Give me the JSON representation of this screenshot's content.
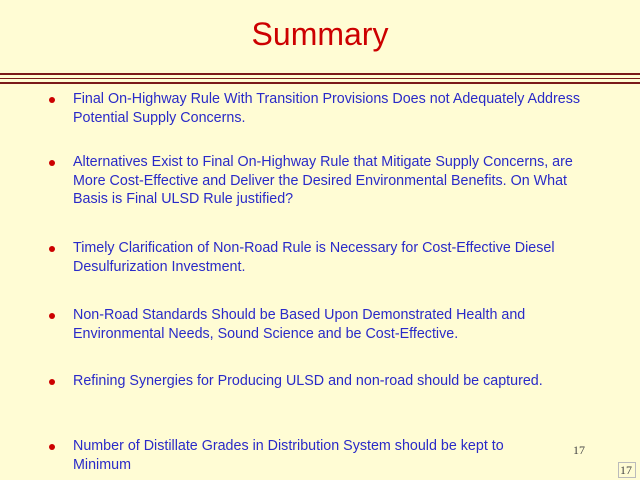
{
  "slide": {
    "title": "Summary",
    "bullets": [
      "Final On-Highway Rule With Transition Provisions Does not Adequately Address Potential Supply Concerns.",
      "Alternatives Exist to Final On-Highway Rule that Mitigate Supply Concerns, are More Cost-Effective and Deliver the Desired Environmental Benefits. On What Basis is Final ULSD Rule justified?",
      "Timely Clarification of Non-Road Rule is Necessary for Cost-Effective Diesel Desulfurization Investment.",
      "Non-Road Standards Should be Based Upon Demonstrated Health and Environmental Needs, Sound Science and be Cost-Effective.",
      "Refining Synergies for Producing ULSD and non-road should be captured.",
      "Number of Distillate Grades in Distribution System should be kept to Minimum"
    ],
    "page_number": "17",
    "page_number_corner": "17"
  },
  "colors": {
    "background": "#fffcd4",
    "title": "#cc0000",
    "bullet_text": "#2a2ac8",
    "bullet_dot": "#cc0000",
    "rule": "#7a1a1a"
  }
}
